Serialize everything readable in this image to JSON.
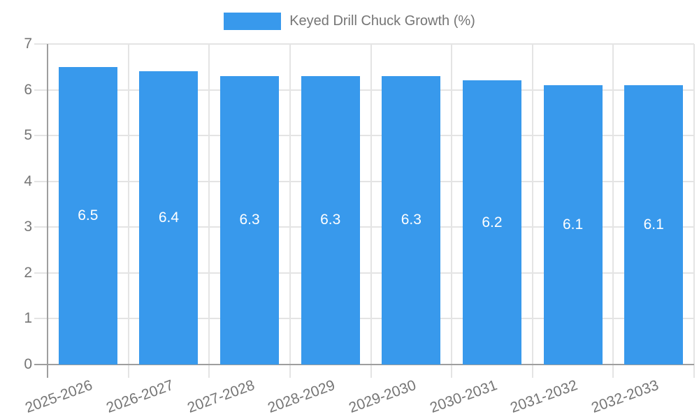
{
  "chart_data": {
    "type": "bar",
    "title": "Keyed Drill Chuck Growth (%)",
    "categories": [
      "2025-2026",
      "2026-2027",
      "2027-2028",
      "2028-2029",
      "2029-2030",
      "2030-2031",
      "2031-2032",
      "2032-2033"
    ],
    "values": [
      6.5,
      6.4,
      6.3,
      6.3,
      6.3,
      6.2,
      6.1,
      6.1
    ],
    "bar_labels": [
      "6.5",
      "6.4",
      "6.3",
      "6.3",
      "6.3",
      "6.2",
      "6.1",
      "6.1"
    ],
    "xlabel": "",
    "ylabel": "",
    "ylim": [
      0,
      7
    ],
    "yticks": [
      0,
      1,
      2,
      3,
      4,
      5,
      6,
      7
    ],
    "grid": true,
    "legend_position": "top",
    "colors": {
      "bar": "#3899ec",
      "grid": "#e4e4e4",
      "axis": "#9e9e9e",
      "text": "#757575",
      "bar_label": "#ffffff",
      "background": "#ffffff"
    }
  }
}
